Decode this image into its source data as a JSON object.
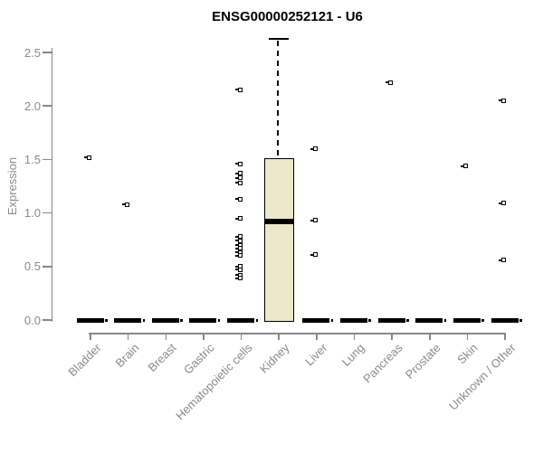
{
  "chart_data": {
    "type": "boxplot",
    "title": "ENSG00000252121 - U6",
    "xlabel": "",
    "ylabel": "Expression",
    "ylim": [
      0.0,
      2.5
    ],
    "yticks": [
      "0.0",
      "0.5",
      "1.0",
      "1.5",
      "2.0",
      "2.5"
    ],
    "grid": "off",
    "legend": "none",
    "categories": [
      "Bladder",
      "Brain",
      "Breast",
      "Gastric",
      "Hematopoietic cells",
      "Kidney",
      "Liver",
      "Lung",
      "Pancreas",
      "Prostate",
      "Skin",
      "Unknown / Other"
    ],
    "boxes": [
      {
        "category": "Bladder",
        "q1": 0,
        "median": 0,
        "q3": 0,
        "whisker_low": 0,
        "whisker_high": 0,
        "outliers": [
          1.52
        ]
      },
      {
        "category": "Brain",
        "q1": 0,
        "median": 0,
        "q3": 0,
        "whisker_low": 0,
        "whisker_high": 0,
        "outliers": [
          1.08
        ]
      },
      {
        "category": "Breast",
        "q1": 0,
        "median": 0,
        "q3": 0,
        "whisker_low": 0,
        "whisker_high": 0,
        "outliers": []
      },
      {
        "category": "Gastric",
        "q1": 0,
        "median": 0,
        "q3": 0,
        "whisker_low": 0,
        "whisker_high": 0,
        "outliers": []
      },
      {
        "category": "Hematopoietic cells",
        "q1": 0,
        "median": 0,
        "q3": 0,
        "whisker_low": 0,
        "whisker_high": 0,
        "outliers": [
          2.15,
          1.46,
          1.37,
          1.33,
          1.28,
          1.13,
          0.95,
          0.78,
          0.74,
          0.7,
          0.67,
          0.63,
          0.6,
          0.5,
          0.47,
          0.42,
          0.39
        ]
      },
      {
        "category": "Kidney",
        "q1": 0,
        "median": 0.92,
        "q3": 1.51,
        "whisker_low": 0,
        "whisker_high": 2.63,
        "outliers": []
      },
      {
        "category": "Liver",
        "q1": 0,
        "median": 0,
        "q3": 0,
        "whisker_low": 0,
        "whisker_high": 0,
        "outliers": [
          1.6,
          0.93,
          0.61
        ]
      },
      {
        "category": "Lung",
        "q1": 0,
        "median": 0,
        "q3": 0,
        "whisker_low": 0,
        "whisker_high": 0,
        "outliers": []
      },
      {
        "category": "Pancreas",
        "q1": 0,
        "median": 0,
        "q3": 0,
        "whisker_low": 0,
        "whisker_high": 0,
        "outliers": [
          2.22
        ]
      },
      {
        "category": "Prostate",
        "q1": 0,
        "median": 0,
        "q3": 0,
        "whisker_low": 0,
        "whisker_high": 0,
        "outliers": []
      },
      {
        "category": "Skin",
        "q1": 0,
        "median": 0,
        "q3": 0,
        "whisker_low": 0,
        "whisker_high": 0,
        "outliers": [
          1.44
        ]
      },
      {
        "category": "Unknown / Other",
        "q1": 0,
        "median": 0,
        "q3": 0,
        "whisker_low": 0,
        "whisker_high": 0,
        "outliers": [
          2.05,
          1.09,
          0.56
        ]
      }
    ],
    "colors": {
      "box_fill": "#EDE7CB",
      "box_border": "#000000",
      "median": "#000000",
      "outlier": "#000000",
      "axis": "#878787",
      "tick_text": "#8a8a8a",
      "title_text": "#000000"
    }
  }
}
